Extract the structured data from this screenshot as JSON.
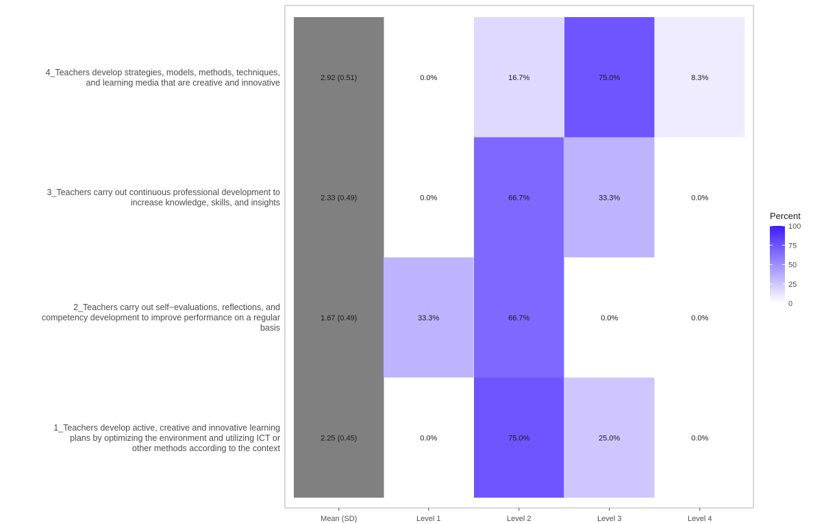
{
  "chart_data": {
    "type": "heatmap",
    "title": "",
    "xlabel": "",
    "ylabel": "",
    "columns": [
      "Mean (SD)",
      "Level 1",
      "Level 2",
      "Level 3",
      "Level 4"
    ],
    "rows": [
      {
        "label": "4_Teachers develop strategies, models, methods, techniques,\nand learning media that are creative and innovative",
        "mean_sd": "2.92 (0.51)",
        "levels": [
          {
            "value": 0.0,
            "text": "0.0%"
          },
          {
            "value": 16.7,
            "text": "16.7%"
          },
          {
            "value": 75.0,
            "text": "75.0%"
          },
          {
            "value": 8.3,
            "text": "8.3%"
          }
        ]
      },
      {
        "label": "3_Teachers carry out continuous professional development to\nincrease knowledge, skills, and insights",
        "mean_sd": "2.33 (0.49)",
        "levels": [
          {
            "value": 0.0,
            "text": "0.0%"
          },
          {
            "value": 66.7,
            "text": "66.7%"
          },
          {
            "value": 33.3,
            "text": "33.3%"
          },
          {
            "value": 0.0,
            "text": "0.0%"
          }
        ]
      },
      {
        "label": "2_Teachers carry out self−evaluations, reflections, and\ncompetency development to improve performance on a regular\nbasis",
        "mean_sd": "1.67 (0.49)",
        "levels": [
          {
            "value": 33.3,
            "text": "33.3%"
          },
          {
            "value": 66.7,
            "text": "66.7%"
          },
          {
            "value": 0.0,
            "text": "0.0%"
          },
          {
            "value": 0.0,
            "text": "0.0%"
          }
        ]
      },
      {
        "label": "1_Teachers develop active, creative and innovative learning\nplans by optimizing the environment and utilizing ICT or\nother methods according to the context",
        "mean_sd": "2.25 (0.45)",
        "levels": [
          {
            "value": 0.0,
            "text": "0.0%"
          },
          {
            "value": 75.0,
            "text": "75.0%"
          },
          {
            "value": 25.0,
            "text": "25.0%"
          },
          {
            "value": 0.0,
            "text": "0.0%"
          }
        ]
      }
    ],
    "legend": {
      "title": "Percent",
      "placement": "right",
      "range": [
        0,
        100
      ],
      "ticks": [
        0,
        25,
        50,
        75,
        100
      ]
    },
    "colors": {
      "mean_fill": "#808080",
      "scale_low": "#ffffff",
      "scale_high": "#3d1cff"
    },
    "grid": false
  }
}
